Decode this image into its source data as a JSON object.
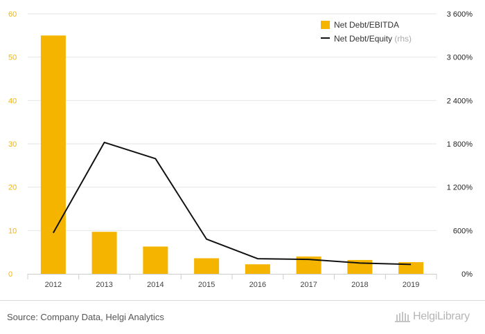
{
  "chart_data": {
    "type": "bar",
    "categories": [
      "2012",
      "2013",
      "2014",
      "2015",
      "2016",
      "2017",
      "2018",
      "2019"
    ],
    "series": [
      {
        "name": "Net Debt/EBITDA",
        "type": "bar",
        "axis": "left",
        "color": "#f5b400",
        "values": [
          55.0,
          9.7,
          6.3,
          3.6,
          2.2,
          4.0,
          3.2,
          2.7
        ]
      },
      {
        "name": "Net Debt/Equity",
        "name_suffix": "(rhs)",
        "type": "line",
        "axis": "right",
        "color": "#111111",
        "values": [
          567,
          1820,
          1595,
          480,
          210,
          200,
          150,
          130
        ]
      }
    ],
    "y_left": {
      "min": 0,
      "max": 60,
      "ticks": [
        "0",
        "10",
        "20",
        "30",
        "40",
        "50",
        "60"
      ],
      "tick_values": [
        0,
        10,
        20,
        30,
        40,
        50,
        60
      ]
    },
    "y_right": {
      "min": 0,
      "max": 3600,
      "ticks": [
        "0%",
        "600%",
        "1 200%",
        "1 800%",
        "2 400%",
        "3 000%",
        "3 600%"
      ],
      "tick_values": [
        0,
        600,
        1200,
        1800,
        2400,
        3000,
        3600
      ]
    },
    "grid": true,
    "legend_position": "top-right"
  },
  "footer": {
    "source": "Source: Company Data, Helgi Analytics",
    "logo_text": "HelgiLibrary"
  },
  "colors": {
    "accent": "#f5b400",
    "line": "#111111",
    "grid": "#e6e6e6"
  }
}
